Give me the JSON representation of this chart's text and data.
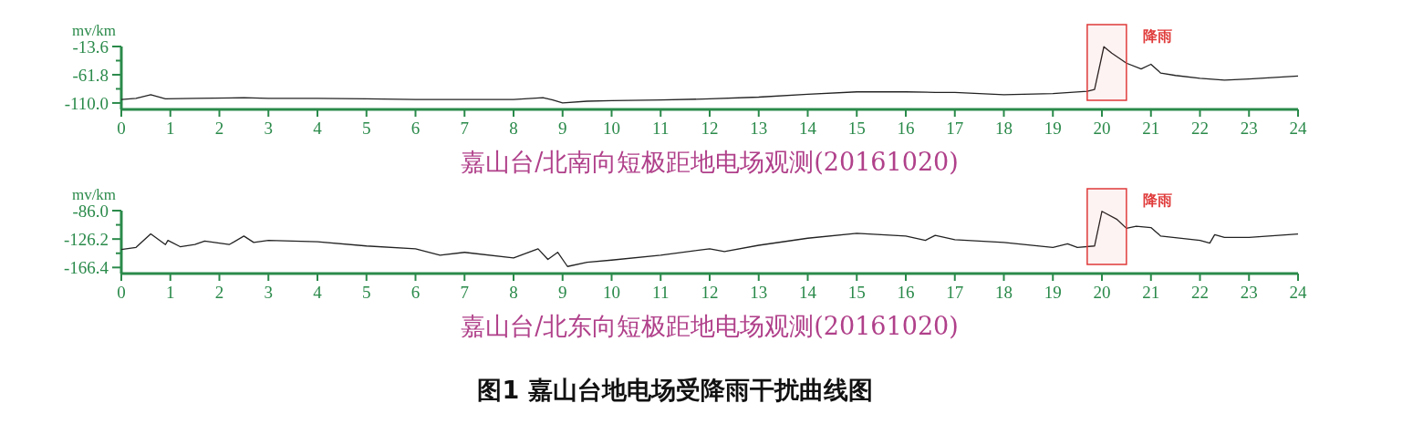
{
  "chart_data": [
    {
      "type": "line",
      "xlabel": "嘉山台/北南向短极距地电场观测(20161020)",
      "ylabel": "mv/km",
      "xlim": [
        0,
        24
      ],
      "xticks": [
        0,
        1,
        2,
        3,
        4,
        5,
        6,
        7,
        8,
        9,
        10,
        11,
        12,
        13,
        14,
        15,
        16,
        17,
        18,
        19,
        20,
        21,
        22,
        23,
        24
      ],
      "ylim": [
        -121,
        -13.6
      ],
      "yticks": [
        -13.6,
        {
          "value": -37.7,
          "label": null
        },
        -61.8,
        {
          "value": -85.9,
          "label": null
        },
        {
          "value": -110,
          "label": "-110.0"
        }
      ],
      "grid": false,
      "bands": [
        {
          "axis": "x",
          "from": 19.7,
          "to": 20.5,
          "label": "降雨",
          "color": "#e03a3a"
        }
      ],
      "series": [
        {
          "color": "#222222",
          "x": [
            0,
            0.3,
            0.6,
            0.9,
            1.5,
            2.5,
            3,
            4,
            5,
            6,
            7,
            8,
            8.6,
            8.8,
            9,
            9.5,
            10,
            11,
            12,
            13,
            14,
            15,
            16,
            16.6,
            17,
            18,
            19,
            19.7,
            19.85,
            20.04,
            20.2,
            20.5,
            20.8,
            21,
            21.2,
            21.5,
            22,
            22.5,
            23,
            24
          ],
          "values": [
            -104,
            -102,
            -96,
            -103,
            -102,
            -101,
            -102,
            -102,
            -103,
            -104,
            -104,
            -104,
            -101,
            -105,
            -110,
            -107,
            -106,
            -105,
            -103,
            -100,
            -95,
            -91,
            -91,
            -92,
            -92,
            -96,
            -94,
            -90,
            -87,
            -14,
            -25,
            -42,
            -52,
            -44,
            -59,
            -63,
            -68,
            -71,
            -69,
            -64
          ]
        }
      ]
    },
    {
      "type": "line",
      "xlabel": "嘉山台/北东向短极距地电场观测(20161020)",
      "ylabel": "mv/km",
      "xlim": [
        0,
        24
      ],
      "xticks": [
        0,
        1,
        2,
        3,
        4,
        5,
        6,
        7,
        8,
        9,
        10,
        11,
        12,
        13,
        14,
        15,
        16,
        17,
        18,
        19,
        20,
        21,
        22,
        23,
        24
      ],
      "ylim": [
        -175,
        -86
      ],
      "yticks": [
        {
          "value": -86,
          "label": "-86.0"
        },
        {
          "value": -106.1,
          "label": null
        },
        -126.2,
        {
          "value": -146.3,
          "label": null
        },
        -166.4
      ],
      "grid": false,
      "bands": [
        {
          "axis": "x",
          "from": 19.7,
          "to": 20.5,
          "label": "降雨",
          "color": "#e03a3a"
        }
      ],
      "annotations": [
        "图1  嘉山台地电场受降雨干扰曲线图"
      ],
      "series": [
        {
          "color": "#222222",
          "x": [
            0,
            0.3,
            0.6,
            0.9,
            0.95,
            1.2,
            1.5,
            1.7,
            2.2,
            2.5,
            2.7,
            3,
            4,
            5,
            6,
            6.5,
            7,
            8,
            8.5,
            8.7,
            8.9,
            9.1,
            9.5,
            10,
            11,
            12,
            12.3,
            13,
            14,
            15,
            16,
            16.4,
            16.6,
            17,
            18,
            19,
            19.3,
            19.5,
            19.85,
            20.0,
            20.3,
            20.5,
            20.7,
            21,
            21.2,
            22,
            22.2,
            22.3,
            22.5,
            23,
            24
          ],
          "values": [
            -141,
            -138,
            -119,
            -134,
            -128,
            -137,
            -134,
            -129,
            -134,
            -122,
            -131,
            -128,
            -130,
            -136,
            -140,
            -149,
            -145,
            -153,
            -140,
            -155,
            -145,
            -165,
            -159,
            -156,
            -149,
            -140,
            -144,
            -135,
            -125,
            -118,
            -122,
            -128,
            -121,
            -127,
            -131,
            -138,
            -133,
            -138,
            -136,
            -87,
            -98,
            -111,
            -108,
            -110,
            -122,
            -128,
            -132,
            -120,
            -124,
            -124,
            -119
          ]
        }
      ]
    }
  ]
}
